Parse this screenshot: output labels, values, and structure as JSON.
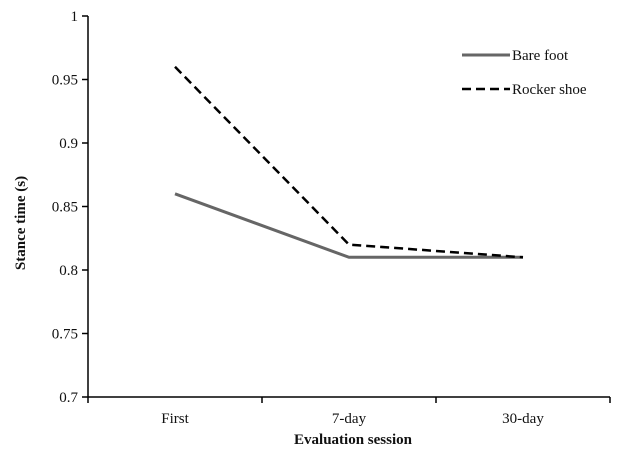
{
  "chart_data": {
    "type": "line",
    "title": "",
    "xlabel": "Evaluation session",
    "ylabel": "Stance time (s)",
    "categories": [
      "First",
      "7-day",
      "30-day"
    ],
    "ylim": [
      0.7,
      1.0
    ],
    "yticks": [
      "0.7",
      "0.75",
      "0.8",
      "0.85",
      "0.9",
      "0.95",
      "1"
    ],
    "grid": false,
    "legend_position": "top-right",
    "series": [
      {
        "name": "Bare foot",
        "values": [
          0.86,
          0.81,
          0.81
        ],
        "color": "#666666",
        "style": "solid"
      },
      {
        "name": "Rocker shoe",
        "values": [
          0.96,
          0.82,
          0.81
        ],
        "color": "#000000",
        "style": "dashed"
      }
    ]
  }
}
